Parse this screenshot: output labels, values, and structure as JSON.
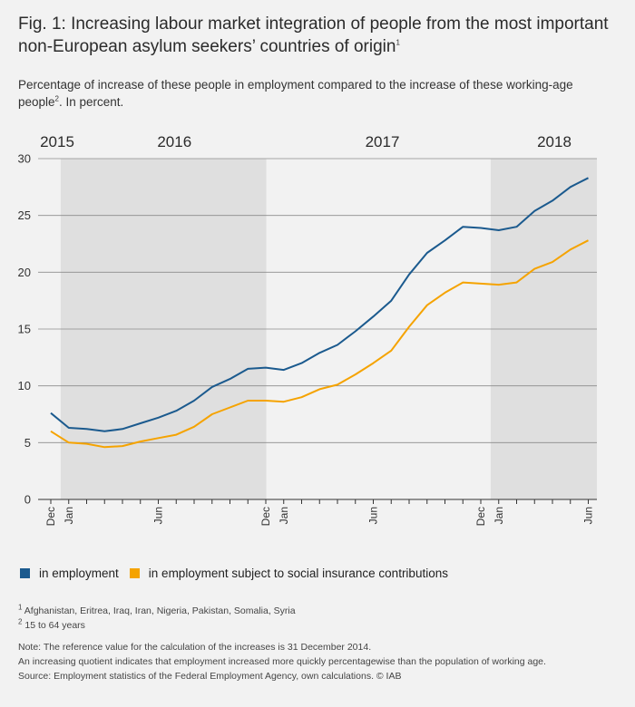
{
  "title": "Fig. 1: Increasing labour market integration of people from the most important non-European asylum seekers’ countries of origin",
  "title_sup": "1",
  "subtitle": "Percentage of increase of these people in employment compared to the increase of these working-age people",
  "subtitle_sup": "2",
  "subtitle_tail": ". In percent.",
  "chart_data": {
    "type": "line",
    "year_labels": [
      "2015",
      "2016",
      "2017",
      "2018"
    ],
    "x": [
      "Dec 2014",
      "Jan 2015",
      "Feb 2015",
      "Mar 2015",
      "Apr 2015",
      "May 2015",
      "Jun 2015",
      "Jul 2015",
      "Aug 2015",
      "Sep 2015",
      "Oct 2015",
      "Nov 2015",
      "Dec 2015",
      "Jan 2016",
      "Feb 2016",
      "Mar 2016",
      "Apr 2016",
      "May 2016",
      "Jun 2016",
      "Jul 2016",
      "Aug 2016",
      "Sep 2016",
      "Oct 2016",
      "Nov 2016",
      "Dec 2016",
      "Jan 2017",
      "Feb 2017",
      "Mar 2017",
      "Apr 2017",
      "May 2017",
      "Jun 2017"
    ],
    "x_tick_labels": [
      "Dec",
      "Jan",
      "",
      "",
      "",
      "",
      "Jun",
      "",
      "",
      "",
      "",
      "",
      "Dec",
      "Jan",
      "",
      "",
      "",
      "",
      "Jun",
      "",
      "",
      "",
      "",
      "",
      "Dec",
      "Jan",
      "",
      "",
      "",
      "",
      "Jun"
    ],
    "shaded_ranges": [
      [
        1,
        12
      ],
      [
        25,
        30
      ]
    ],
    "series": [
      {
        "name": "in employment",
        "color": "#1b5a8e",
        "values": [
          7.6,
          6.3,
          6.2,
          6.0,
          6.2,
          6.7,
          7.2,
          7.8,
          8.7,
          9.9,
          10.6,
          11.5,
          11.6,
          11.4,
          12.0,
          12.9,
          13.6,
          14.8,
          16.1,
          17.5,
          19.8,
          21.7,
          22.8,
          24.0,
          23.9,
          23.7,
          24.0,
          25.4,
          26.3,
          27.5,
          28.3
        ]
      },
      {
        "name": "in employment subject to social insurance contributions",
        "color": "#f5a300",
        "values": [
          6.0,
          5.0,
          4.9,
          4.6,
          4.7,
          5.1,
          5.4,
          5.7,
          6.4,
          7.5,
          8.1,
          8.7,
          8.7,
          8.6,
          9.0,
          9.7,
          10.1,
          11.0,
          12.0,
          13.1,
          15.2,
          17.1,
          18.2,
          19.1,
          19.0,
          18.9,
          19.1,
          20.3,
          20.9,
          22.0,
          22.8
        ]
      }
    ],
    "ylim": [
      0,
      30
    ],
    "yticks": [
      0,
      5,
      10,
      15,
      20,
      25,
      30
    ],
    "grid": true,
    "legend_position": "bottom-left"
  },
  "legend": {
    "items": [
      {
        "label": "in employment",
        "color": "#1b5a8e"
      },
      {
        "label": "in employment subject to social insurance contributions",
        "color": "#f5a300"
      }
    ]
  },
  "notes": {
    "fn1_sup": "1",
    "fn1": "Afghanistan, Eritrea, Iraq, Iran, Nigeria, Pakistan, Somalia, Syria",
    "fn2_sup": "2",
    "fn2": "15 to 64 years",
    "note1": "Note: The reference value for the calculation of the increases is 31 December 2014.",
    "note2": "An increasing quotient indicates that employment increased more quickly percentagewise than the population of working age.",
    "source": "Source: Employment statistics of the Federal Employment Agency, own calculations. © IAB"
  }
}
